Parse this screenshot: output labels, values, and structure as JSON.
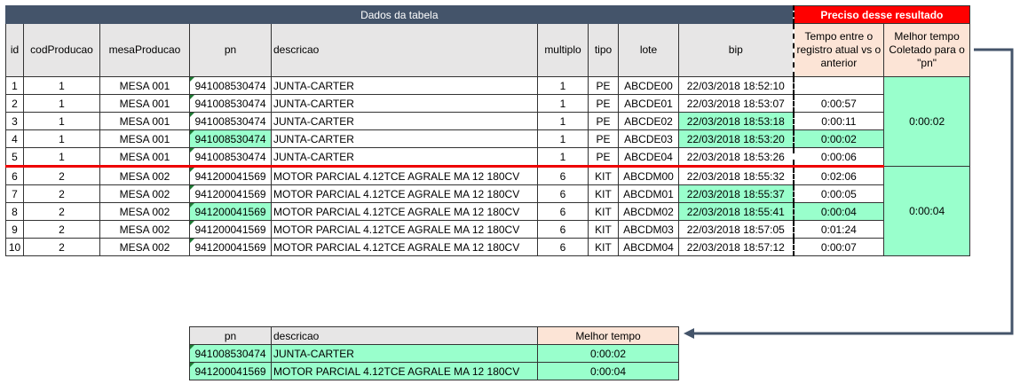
{
  "main": {
    "title": "Dados da tabela",
    "result_title": "Preciso desse resultado",
    "headers": [
      "id",
      "codProducao",
      "mesaProducao",
      "pn",
      "descricao",
      "multiplo",
      "tipo",
      "lote",
      "bip",
      "Tempo entre o registro atual vs o anterior",
      "Melhor tempo Coletado para o \"pn\""
    ],
    "rows": [
      [
        "1",
        "1",
        "MESA 001",
        "941008530474",
        "JUNTA-CARTER",
        "1",
        "PE",
        "ABCDE00",
        "22/03/2018 18:52:10",
        ""
      ],
      [
        "2",
        "1",
        "MESA 001",
        "941008530474",
        "JUNTA-CARTER",
        "1",
        "PE",
        "ABCDE01",
        "22/03/2018 18:53:07",
        "0:00:57"
      ],
      [
        "3",
        "1",
        "MESA 001",
        "941008530474",
        "JUNTA-CARTER",
        "1",
        "PE",
        "ABCDE02",
        "22/03/2018 18:53:18",
        "0:00:11"
      ],
      [
        "4",
        "1",
        "MESA 001",
        "941008530474",
        "JUNTA-CARTER",
        "1",
        "PE",
        "ABCDE03",
        "22/03/2018 18:53:20",
        "0:00:02"
      ],
      [
        "5",
        "1",
        "MESA 001",
        "941008530474",
        "JUNTA-CARTER",
        "1",
        "PE",
        "ABCDE04",
        "22/03/2018 18:53:26",
        "0:00:06"
      ],
      [
        "6",
        "2",
        "MESA 002",
        "941200041569",
        "MOTOR PARCIAL 4.12TCE AGRALE MA 12 180CV",
        "6",
        "KIT",
        "ABCDM00",
        "22/03/2018 18:55:32",
        "0:02:06"
      ],
      [
        "7",
        "2",
        "MESA 002",
        "941200041569",
        "MOTOR PARCIAL 4.12TCE AGRALE MA 12 180CV",
        "6",
        "KIT",
        "ABCDM01",
        "22/03/2018 18:55:37",
        "0:00:05"
      ],
      [
        "8",
        "2",
        "MESA 002",
        "941200041569",
        "MOTOR PARCIAL 4.12TCE AGRALE MA 12 180CV",
        "6",
        "KIT",
        "ABCDM02",
        "22/03/2018 18:55:41",
        "0:00:04"
      ],
      [
        "9",
        "2",
        "MESA 002",
        "941200041569",
        "MOTOR PARCIAL 4.12TCE AGRALE MA 12 180CV",
        "6",
        "KIT",
        "ABCDM03",
        "22/03/2018 18:57:05",
        "0:01:24"
      ],
      [
        "10",
        "2",
        "MESA 002",
        "941200041569",
        "MOTOR PARCIAL 4.12TCE AGRALE MA 12 180CV",
        "6",
        "KIT",
        "ABCDM04",
        "22/03/2018 18:57:12",
        "0:00:07"
      ]
    ],
    "best": [
      "0:00:02",
      "0:00:04"
    ]
  },
  "result": {
    "headers": [
      "pn",
      "descricao",
      "Melhor tempo"
    ],
    "rows": [
      [
        "941008530474",
        "JUNTA-CARTER",
        "0:00:02"
      ],
      [
        "941200041569",
        "MOTOR PARCIAL 4.12TCE AGRALE MA 12 180CV",
        "0:00:04"
      ]
    ]
  },
  "colors": {
    "header": "#44546a",
    "highlight": "#99ffcc",
    "required": "#ff0000",
    "peach": "#fce4d6"
  }
}
